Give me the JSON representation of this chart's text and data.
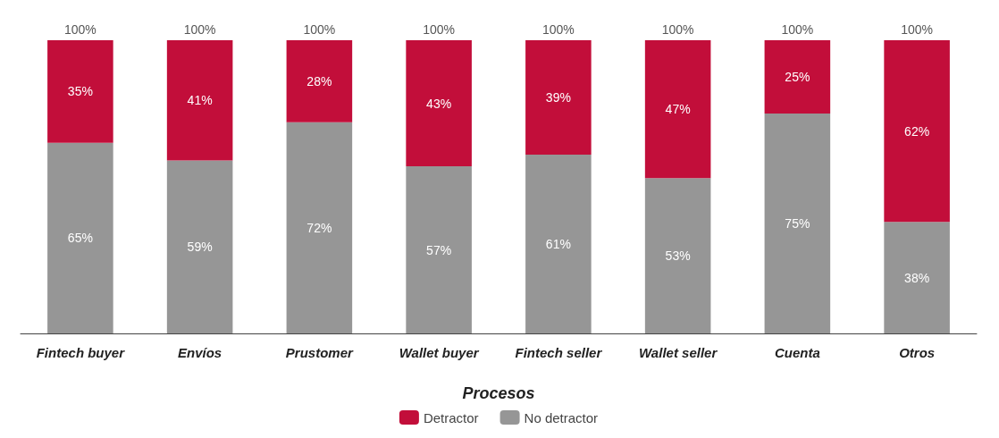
{
  "chart_data": {
    "type": "bar",
    "stacked": true,
    "xlabel": "Procesos",
    "tick_labels": "x",
    "categories": [
      "Fintech buyer",
      "Envíos",
      "Prustomer",
      "Wallet buyer",
      "Fintech seller",
      "Wallet seller",
      "Cuenta",
      "Otros"
    ],
    "series": [
      {
        "name": "No detractor",
        "color": "#969696",
        "values": [
          65,
          59,
          72,
          57,
          61,
          53,
          75,
          38
        ],
        "value_labels": [
          "65%",
          "59%",
          "72%",
          "57%",
          "61%",
          "53%",
          "75%",
          "38%"
        ]
      },
      {
        "name": "Detractor",
        "color": "#c20e3a",
        "values": [
          35,
          41,
          28,
          43,
          39,
          47,
          25,
          62
        ],
        "value_labels": [
          "35%",
          "41%",
          "28%",
          "43%",
          "39%",
          "47%",
          "25%",
          "62%"
        ]
      }
    ],
    "totals": [
      "100%",
      "100%",
      "100%",
      "100%",
      "100%",
      "100%",
      "100%",
      "100%"
    ],
    "legend": "bottom"
  }
}
